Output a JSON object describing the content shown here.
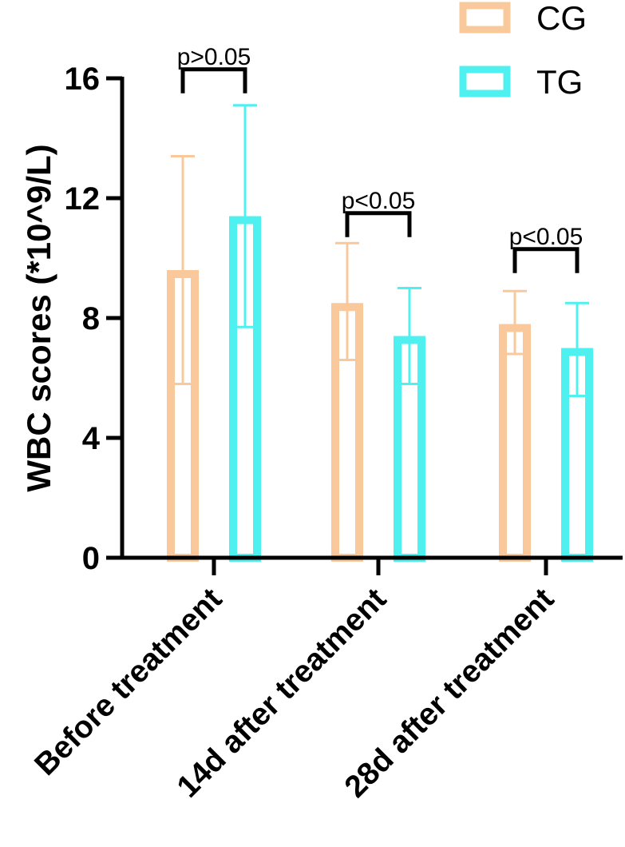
{
  "chart_data": {
    "type": "bar",
    "title": "",
    "xlabel": "",
    "ylabel": "WBC scores (*10^9/L)",
    "ylim": [
      0,
      16
    ],
    "yticks": [
      0,
      4,
      8,
      12,
      16
    ],
    "grid": false,
    "legend_position": "top-right",
    "categories": [
      "Before treatment",
      "14d after treatment",
      "28d after treatment"
    ],
    "series": [
      {
        "name": "CG",
        "color": "#F9C89B",
        "values": [
          9.6,
          8.5,
          7.8
        ],
        "err_low": [
          5.8,
          6.6,
          6.8
        ],
        "err_high": [
          13.4,
          10.5,
          8.9
        ]
      },
      {
        "name": "TG",
        "color": "#4FF0F0",
        "values": [
          11.4,
          7.4,
          7.0
        ],
        "err_low": [
          7.7,
          5.8,
          5.4
        ],
        "err_high": [
          15.1,
          9.0,
          8.5
        ]
      }
    ],
    "significance": [
      {
        "category": "Before treatment",
        "label": "p>0.05",
        "y": 16.3
      },
      {
        "category": "14d after treatment",
        "label": "p<0.05",
        "y": 11.5
      },
      {
        "category": "28d after treatment",
        "label": "p<0.05",
        "y": 10.3
      }
    ]
  }
}
